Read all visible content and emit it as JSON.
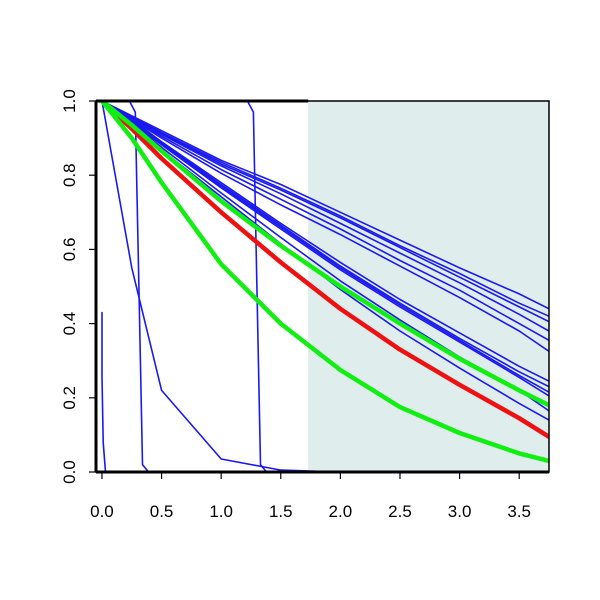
{
  "chart_data": {
    "type": "line",
    "title": "",
    "xlabel": "",
    "ylabel": "",
    "xlim": [
      -0.05,
      3.75
    ],
    "ylim": [
      0.0,
      1.0
    ],
    "x_ticks": [
      0.0,
      0.5,
      1.0,
      1.5,
      2.0,
      2.5,
      3.0,
      3.5
    ],
    "x_tick_labels": [
      "0.0",
      "0.5",
      "1.0",
      "1.5",
      "2.0",
      "2.5",
      "3.0",
      "3.5"
    ],
    "y_ticks": [
      0.0,
      0.2,
      0.4,
      0.6,
      0.8,
      1.0
    ],
    "y_tick_labels": [
      "0.0",
      "0.2",
      "0.4",
      "0.6",
      "0.8",
      "1.0"
    ],
    "grid": false,
    "legend": "none",
    "shaded_region": {
      "x_from": 1.73,
      "x_to": 3.75,
      "color": "#e0eded"
    },
    "colors": {
      "blue": "#1a1aee",
      "red": "#ee1111",
      "green": "#11ee11"
    },
    "curve_x_sample": [
      0,
      0.25,
      0.5,
      1,
      1.5,
      2,
      2.5,
      3,
      3.5,
      3.75
    ],
    "series": [
      {
        "group": "blue",
        "family": "linear-decay",
        "values_at_sample": [
          1,
          0.96,
          0.92,
          0.84,
          0.775,
          0.7,
          0.625,
          0.55,
          0.48,
          0.44
        ]
      },
      {
        "group": "blue",
        "family": "linear-decay",
        "values_at_sample": [
          1,
          0.958,
          0.915,
          0.835,
          0.765,
          0.69,
          0.61,
          0.535,
          0.455,
          0.42
        ]
      },
      {
        "group": "blue",
        "family": "linear-decay",
        "values_at_sample": [
          1,
          0.957,
          0.913,
          0.83,
          0.76,
          0.685,
          0.605,
          0.525,
          0.445,
          0.405
        ]
      },
      {
        "group": "blue",
        "family": "linear-decay",
        "values_at_sample": [
          1,
          0.955,
          0.91,
          0.825,
          0.75,
          0.67,
          0.59,
          0.51,
          0.425,
          0.38
        ]
      },
      {
        "group": "blue",
        "family": "linear-decay",
        "values_at_sample": [
          1,
          0.953,
          0.905,
          0.815,
          0.735,
          0.655,
          0.57,
          0.49,
          0.4,
          0.355
        ]
      },
      {
        "group": "blue",
        "family": "linear-decay",
        "values_at_sample": [
          1,
          0.95,
          0.9,
          0.805,
          0.72,
          0.64,
          0.555,
          0.47,
          0.38,
          0.325
        ]
      },
      {
        "group": "blue",
        "family": "convex-decay",
        "values_at_sample": [
          1,
          0.95,
          0.89,
          0.78,
          0.67,
          0.565,
          0.465,
          0.375,
          0.285,
          0.245
        ]
      },
      {
        "group": "blue",
        "family": "convex-decay",
        "values_at_sample": [
          1,
          0.947,
          0.887,
          0.775,
          0.665,
          0.555,
          0.455,
          0.36,
          0.27,
          0.23
        ]
      },
      {
        "group": "blue",
        "family": "convex-decay",
        "values_at_sample": [
          1,
          0.944,
          0.884,
          0.77,
          0.66,
          0.55,
          0.45,
          0.355,
          0.26,
          0.215
        ]
      },
      {
        "group": "blue",
        "family": "convex-decay",
        "values_at_sample": [
          1,
          0.942,
          0.882,
          0.766,
          0.655,
          0.545,
          0.445,
          0.35,
          0.255,
          0.205
        ]
      },
      {
        "group": "blue",
        "family": "convex-decay",
        "values_at_sample": [
          1,
          0.94,
          0.875,
          0.752,
          0.632,
          0.515,
          0.41,
          0.31,
          0.22,
          0.165
        ]
      },
      {
        "group": "blue",
        "family": "convex-decay",
        "values_at_sample": [
          1,
          0.935,
          0.868,
          0.742,
          0.615,
          0.492,
          0.38,
          0.28,
          0.185,
          0.14
        ]
      },
      {
        "group": "blue",
        "family": "fast-decay",
        "values_at_sample": [
          1,
          0.55,
          0.22,
          0.035,
          0.005,
          0,
          0,
          0,
          0,
          0
        ]
      },
      {
        "group": "blue",
        "family": "cliff-at-0.05",
        "values_at_sample": [
          0.43,
          0,
          0,
          0,
          0,
          0,
          0,
          0,
          0,
          0
        ]
      },
      {
        "group": "blue",
        "family": "cliff-at-0.3",
        "values_at_sample": [
          1,
          0.96,
          0.02,
          0,
          0,
          0,
          0,
          0,
          0,
          0
        ]
      },
      {
        "group": "blue",
        "family": "cliff-at-1.3",
        "values_at_sample": [
          1,
          1,
          1,
          1,
          0,
          0,
          0,
          0,
          0,
          0
        ]
      },
      {
        "group": "red",
        "family": "reference",
        "values_at_sample": [
          1,
          0.925,
          0.845,
          0.7,
          0.565,
          0.44,
          0.33,
          0.235,
          0.145,
          0.095
        ]
      },
      {
        "group": "green",
        "family": "upper",
        "values_at_sample": [
          1,
          0.935,
          0.865,
          0.73,
          0.61,
          0.5,
          0.4,
          0.305,
          0.22,
          0.18
        ]
      },
      {
        "group": "green",
        "family": "lower",
        "values_at_sample": [
          1,
          0.9,
          0.78,
          0.56,
          0.4,
          0.275,
          0.175,
          0.105,
          0.05,
          0.03
        ]
      }
    ]
  }
}
